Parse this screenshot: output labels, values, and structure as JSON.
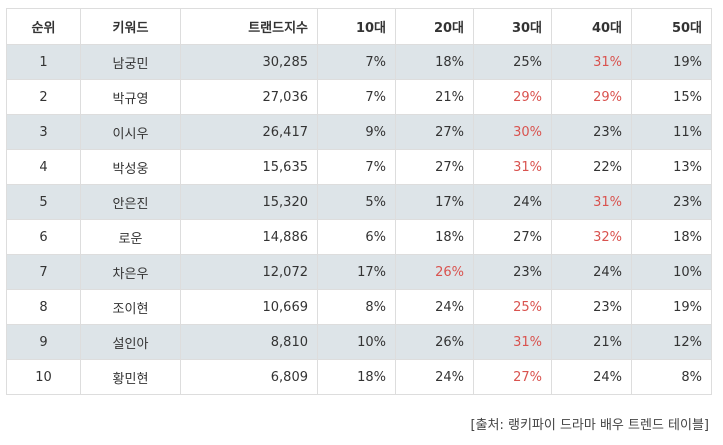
{
  "table": {
    "headers": [
      "순위",
      "키워드",
      "트랜드지수",
      "10대",
      "20대",
      "30대",
      "40대",
      "50대"
    ],
    "highlight_color": "#d9534f",
    "row_stripe_color": "#dde4e8",
    "rows": [
      {
        "rank": "1",
        "keyword": "남궁민",
        "index": "30,285",
        "age10": "7%",
        "age20": "18%",
        "age30": "25%",
        "age40": "31%",
        "age50": "19%",
        "hot": "age40"
      },
      {
        "rank": "2",
        "keyword": "박규영",
        "index": "27,036",
        "age10": "7%",
        "age20": "21%",
        "age30": "29%",
        "age40": "29%",
        "age50": "15%",
        "hot": "age30,age40"
      },
      {
        "rank": "3",
        "keyword": "이시우",
        "index": "26,417",
        "age10": "9%",
        "age20": "27%",
        "age30": "30%",
        "age40": "23%",
        "age50": "11%",
        "hot": "age30"
      },
      {
        "rank": "4",
        "keyword": "박성웅",
        "index": "15,635",
        "age10": "7%",
        "age20": "27%",
        "age30": "31%",
        "age40": "22%",
        "age50": "13%",
        "hot": "age30"
      },
      {
        "rank": "5",
        "keyword": "안은진",
        "index": "15,320",
        "age10": "5%",
        "age20": "17%",
        "age30": "24%",
        "age40": "31%",
        "age50": "23%",
        "hot": "age40"
      },
      {
        "rank": "6",
        "keyword": "로운",
        "index": "14,886",
        "age10": "6%",
        "age20": "18%",
        "age30": "27%",
        "age40": "32%",
        "age50": "18%",
        "hot": "age40"
      },
      {
        "rank": "7",
        "keyword": "차은우",
        "index": "12,072",
        "age10": "17%",
        "age20": "26%",
        "age30": "23%",
        "age40": "24%",
        "age50": "10%",
        "hot": "age20"
      },
      {
        "rank": "8",
        "keyword": "조이현",
        "index": "10,669",
        "age10": "8%",
        "age20": "24%",
        "age30": "25%",
        "age40": "23%",
        "age50": "19%",
        "hot": "age30"
      },
      {
        "rank": "9",
        "keyword": "설인아",
        "index": "8,810",
        "age10": "10%",
        "age20": "26%",
        "age30": "31%",
        "age40": "21%",
        "age50": "12%",
        "hot": "age30"
      },
      {
        "rank": "10",
        "keyword": "황민현",
        "index": "6,809",
        "age10": "18%",
        "age20": "24%",
        "age30": "27%",
        "age40": "24%",
        "age50": "8%",
        "hot": "age30"
      }
    ]
  },
  "source": "[출처: 랭키파이 드라마 배우 트렌드 테이블]"
}
